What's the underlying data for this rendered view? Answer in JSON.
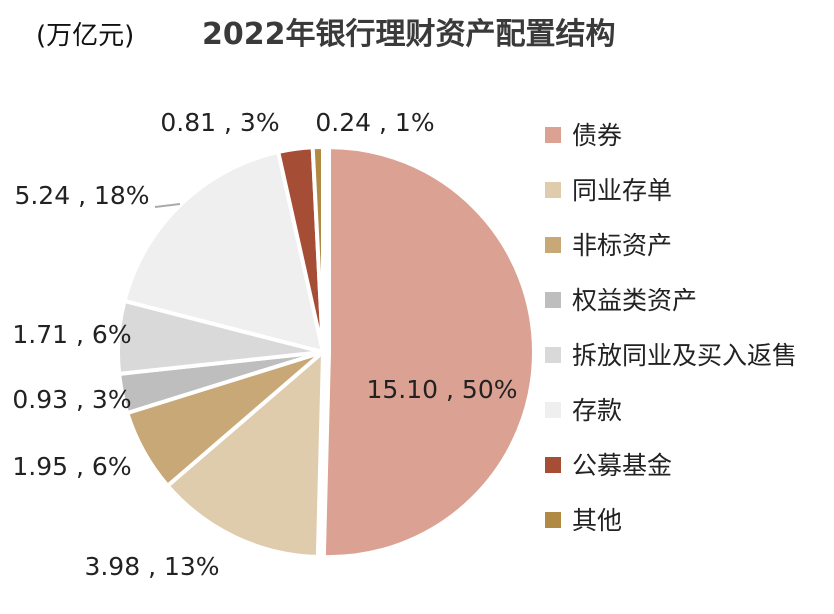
{
  "unit_label": "(万亿元)",
  "title": "2022年银行理财资产配置结构",
  "chart_data": {
    "type": "pie",
    "title": "2022年银行理财资产配置结构",
    "unit": "(万亿元)",
    "legend_position": "right",
    "slices": [
      {
        "name": "债券",
        "value": 15.1,
        "percent": 50,
        "label": "15.10 , 50%",
        "color": "#dba193"
      },
      {
        "name": "同业存单",
        "value": 3.98,
        "percent": 13,
        "label": "3.98 , 13%",
        "color": "#dfccac"
      },
      {
        "name": "非标资产",
        "value": 1.95,
        "percent": 6,
        "label": "1.95 , 6%",
        "color": "#c9a878"
      },
      {
        "name": "权益类资产",
        "value": 0.93,
        "percent": 3,
        "label": "0.93 , 3%",
        "color": "#bebebe"
      },
      {
        "name": "拆放同业及买入返售",
        "value": 1.71,
        "percent": 6,
        "label": "1.71 , 6%",
        "color": "#d9d9d9"
      },
      {
        "name": "存款",
        "value": 5.24,
        "percent": 18,
        "label": "5.24 , 18%",
        "color": "#efefef"
      },
      {
        "name": "公募基金",
        "value": 0.81,
        "percent": 3,
        "label": "0.81 , 3%",
        "color": "#a64d36"
      },
      {
        "name": "其他",
        "value": 0.24,
        "percent": 1,
        "label": "0.24 , 1%",
        "color": "#b08a43"
      }
    ]
  }
}
